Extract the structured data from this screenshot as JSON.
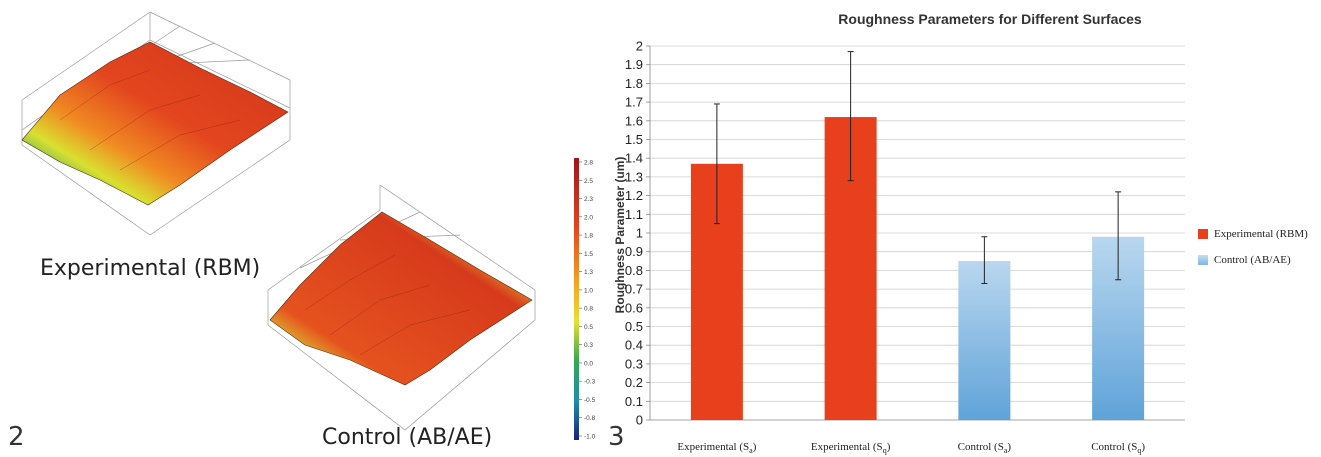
{
  "figure2": {
    "number": "2",
    "experimental_label": "Experimental (RBM)",
    "control_label": "Control (AB/AE)",
    "colorbar_ticks": [
      "2.8",
      "2.5",
      "2.3",
      "2.0",
      "1.8",
      "1.5",
      "1.3",
      "1.0",
      "0.8",
      "0.5",
      "0.3",
      "0.0",
      "-0.3",
      "-0.5",
      "-0.8",
      "-1.0"
    ]
  },
  "figure3": {
    "number": "3"
  },
  "colors": {
    "experimental": "#e8401c",
    "control_top": "#b9d7ef",
    "control_bottom": "#5fa3d9"
  },
  "chart_data": {
    "type": "bar",
    "title": "Roughness Parameters for Different Surfaces",
    "ylabel": "Roughness Parameter (um)",
    "xlabel": "",
    "ylim": [
      0,
      2
    ],
    "ytick_step": 0.1,
    "grid": true,
    "legend_position": "right",
    "categories": [
      "Experimental (Sa)",
      "Experimental (Sq)",
      "Control (Sa)",
      "Control (Sq)"
    ],
    "category_labels": [
      {
        "base": "Experimental (S",
        "sub": "a",
        "end": ")"
      },
      {
        "base": "Experimental (S",
        "sub": "q",
        "end": ")"
      },
      {
        "base": "Control (S",
        "sub": "a",
        "end": ")"
      },
      {
        "base": "Control (S",
        "sub": "q",
        "end": ")"
      }
    ],
    "values": [
      1.37,
      1.62,
      0.85,
      0.98
    ],
    "error_low": [
      1.05,
      1.28,
      0.73,
      0.75
    ],
    "error_high": [
      1.69,
      1.97,
      0.98,
      1.22
    ],
    "bar_series": [
      "Experimental (RBM)",
      "Experimental (RBM)",
      "Control (AB/AE)",
      "Control (AB/AE)"
    ],
    "legend": [
      {
        "name": "Experimental (RBM)",
        "color": "#e8401c"
      },
      {
        "name": "Control (AB/AE)",
        "color": "#9cc6ea"
      }
    ]
  }
}
